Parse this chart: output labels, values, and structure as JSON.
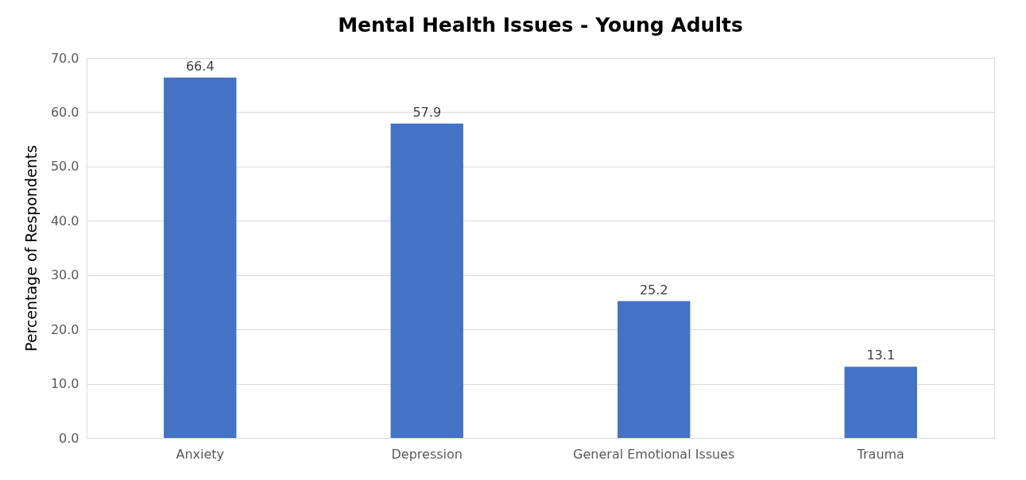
{
  "chart_data": {
    "type": "bar",
    "title": "Mental Health Issues - Young Adults",
    "ylabel": "Percentage of Respondents",
    "categories": [
      "Anxiety",
      "Depression",
      "General Emotional Issues",
      "Trauma"
    ],
    "values": [
      66.4,
      57.9,
      25.2,
      13.1
    ],
    "color": "#4472c4",
    "ylim": [
      0,
      70
    ],
    "yticks": [
      {
        "value": 0,
        "label": "0.0"
      },
      {
        "value": 10,
        "label": "10.0"
      },
      {
        "value": 20,
        "label": "20.0"
      },
      {
        "value": 30,
        "label": "30.0"
      },
      {
        "value": 40,
        "label": "40.0"
      },
      {
        "value": 50,
        "label": "50.0"
      },
      {
        "value": 60,
        "label": "60.0"
      },
      {
        "value": 70,
        "label": "70.0"
      }
    ],
    "grid": "y",
    "data_labels": true
  }
}
